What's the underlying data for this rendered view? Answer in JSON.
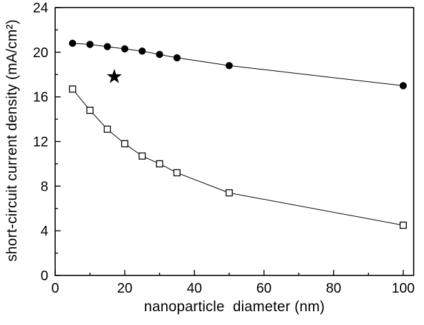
{
  "chart_data": {
    "type": "scatter",
    "title": "",
    "xlabel": "nanoparticle  diameter (nm)",
    "ylabel": "short-circuit current density (mA/cm²)",
    "xlim": [
      0,
      103
    ],
    "ylim": [
      0,
      24
    ],
    "x_major_ticks": [
      0,
      20,
      40,
      60,
      80,
      100
    ],
    "x_minor_ticks": [
      10,
      30,
      50,
      70,
      90
    ],
    "y_major_ticks": [
      0,
      4,
      8,
      12,
      16,
      20,
      24
    ],
    "y_minor_ticks": [
      2,
      6,
      10,
      14,
      18,
      22
    ],
    "grid": false,
    "legend": null,
    "colors": {
      "foreground": "#000000",
      "background": "#ffffff"
    },
    "series": [
      {
        "name": "filled-circles",
        "marker": "filled-circle",
        "x": [
          5,
          10,
          15,
          20,
          25,
          30,
          35,
          50,
          100
        ],
        "y": [
          20.8,
          20.7,
          20.5,
          20.3,
          20.1,
          19.8,
          19.5,
          18.8,
          17.0
        ]
      },
      {
        "name": "open-squares",
        "marker": "open-square",
        "x": [
          5,
          10,
          15,
          20,
          25,
          30,
          35,
          50,
          100
        ],
        "y": [
          16.7,
          14.8,
          13.1,
          11.8,
          10.7,
          10.0,
          9.2,
          7.4,
          4.5
        ]
      }
    ],
    "annotations": [
      {
        "type": "star",
        "x": 17,
        "y": 17.8
      }
    ]
  }
}
